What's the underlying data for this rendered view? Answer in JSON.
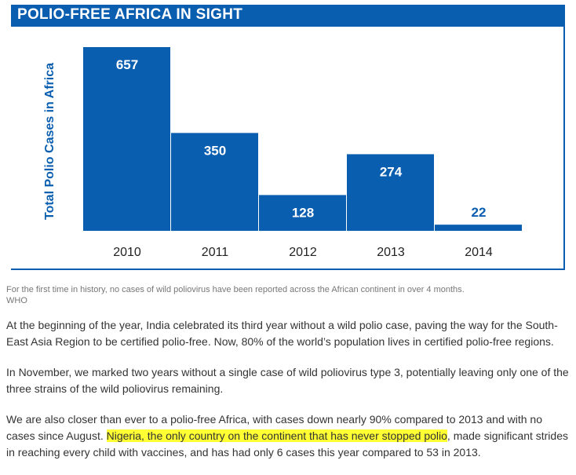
{
  "header": {
    "title": "POLIO-FREE AFRICA IN SIGHT"
  },
  "chart_data": {
    "type": "bar",
    "title": "POLIO-FREE AFRICA IN SIGHT",
    "xlabel": "",
    "ylabel": "Total Polio Cases in Africa",
    "categories": [
      "2010",
      "2011",
      "2012",
      "2013",
      "2014"
    ],
    "values": [
      657,
      350,
      128,
      274,
      22
    ],
    "ylim": [
      0,
      657
    ],
    "grid": false,
    "legend": "none",
    "bar_color": "#0a5eb0",
    "label_color_inside": "#ffffff",
    "label_color_outside": "#0a5eb0"
  },
  "caption": {
    "text": "For the first time in history, no cases of wild poliovirus have been reported across the African continent in over 4 months.",
    "credit": "WHO"
  },
  "article": {
    "p1": "At the beginning of the year, India celebrated its third year without a wild polio case, paving the way for the South-East Asia Region to be certified polio-free. Now, 80% of the world’s population lives in certified polio-free regions.",
    "p2": "In November, we marked two years without a single case of wild poliovirus type 3, potentially leaving only one of the three strains of the wild poliovirus remaining.",
    "p3_before": "We are also closer than ever to a polio-free Africa, with cases down nearly 90% compared to 2013 and with no cases since August. ",
    "p3_highlight": "Nigeria, the only country on the continent that has never stopped polio",
    "p3_after": ", made significant strides in reaching every child with vaccines, and has had only 6 cases this year compared to 53 in 2013."
  }
}
